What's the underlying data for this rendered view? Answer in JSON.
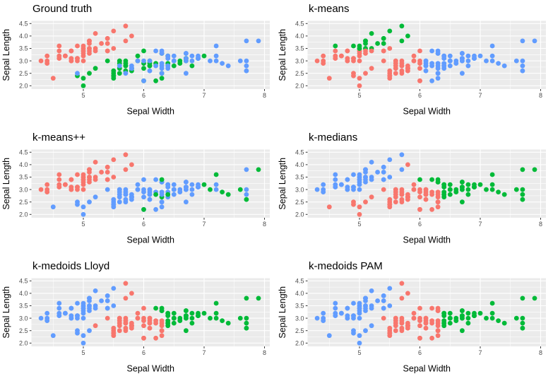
{
  "chart_data": {
    "type": "scatter",
    "xlabel": "Sepal Width",
    "ylabel": "Sepal Length",
    "x_ticks": [
      "5",
      "6",
      "7",
      "8"
    ],
    "x_tick_values": [
      5,
      6,
      7,
      8
    ],
    "y_ticks": [
      "2.0",
      "2.5",
      "3.0",
      "3.5",
      "4.0",
      "4.5"
    ],
    "y_tick_values": [
      2.0,
      2.5,
      3.0,
      3.5,
      4.0,
      4.5
    ],
    "x_minor_ticks": [
      4.5,
      5.5,
      6.5,
      7.5
    ],
    "y_minor_ticks": [
      2.25,
      2.75,
      3.25,
      3.75,
      4.25
    ],
    "x_range": [
      4.12,
      8.08
    ],
    "y_range": [
      1.88,
      4.62
    ],
    "grid": "on",
    "legend": "none",
    "panel_background": "#EBEBEB",
    "gridline_color": "#FFFFFF",
    "tick_color": "#333333",
    "tick_label_color": "#4D4D4D",
    "palette": {
      "r": "#F8766D",
      "g": "#00BA38",
      "b": "#619CFF"
    },
    "x": [
      5.1,
      4.9,
      4.7,
      4.6,
      5.0,
      5.4,
      4.6,
      5.0,
      4.4,
      4.9,
      5.4,
      4.8,
      4.8,
      4.3,
      5.8,
      5.7,
      5.4,
      5.1,
      5.7,
      5.1,
      5.4,
      5.1,
      4.6,
      5.1,
      4.8,
      5.0,
      5.0,
      5.2,
      5.2,
      4.7,
      4.8,
      5.4,
      5.2,
      5.5,
      4.9,
      5.0,
      5.5,
      4.9,
      4.4,
      5.1,
      5.0,
      4.5,
      4.4,
      5.0,
      5.1,
      4.8,
      5.1,
      4.6,
      5.3,
      5.0,
      7.0,
      6.4,
      6.9,
      5.5,
      6.5,
      5.7,
      6.3,
      4.9,
      6.6,
      5.2,
      5.0,
      5.9,
      6.0,
      6.1,
      5.6,
      6.7,
      5.6,
      5.8,
      6.2,
      5.6,
      5.9,
      6.1,
      6.3,
      6.1,
      6.4,
      6.6,
      6.8,
      6.7,
      6.0,
      5.7,
      5.5,
      5.5,
      5.8,
      6.0,
      5.4,
      6.0,
      6.7,
      6.3,
      5.6,
      5.5,
      5.5,
      6.1,
      5.8,
      5.0,
      5.6,
      5.7,
      5.7,
      6.2,
      5.1,
      5.7,
      6.3,
      5.8,
      7.1,
      6.3,
      6.5,
      7.6,
      4.9,
      7.3,
      6.7,
      7.2,
      6.5,
      6.4,
      6.8,
      5.7,
      5.8,
      6.4,
      6.5,
      7.7,
      7.7,
      6.0,
      6.9,
      5.6,
      7.7,
      6.3,
      6.7,
      7.2,
      6.2,
      6.1,
      6.4,
      7.2,
      7.4,
      7.9,
      6.4,
      6.3,
      6.1,
      7.7,
      6.3,
      6.4,
      6.0,
      6.9,
      6.7,
      6.9,
      5.8,
      6.8,
      6.7,
      6.7,
      6.3,
      6.5,
      6.2,
      5.9
    ],
    "y": [
      3.5,
      3.0,
      3.2,
      3.1,
      3.6,
      3.9,
      3.4,
      3.4,
      2.9,
      3.1,
      3.7,
      3.4,
      3.0,
      3.0,
      4.0,
      4.4,
      3.9,
      3.5,
      3.8,
      3.8,
      3.4,
      3.7,
      3.6,
      3.3,
      3.4,
      3.0,
      3.4,
      3.5,
      3.4,
      3.2,
      3.1,
      3.4,
      4.1,
      4.2,
      3.1,
      3.2,
      3.5,
      3.6,
      3.0,
      3.4,
      3.5,
      2.3,
      3.2,
      3.5,
      3.8,
      3.0,
      3.8,
      3.2,
      3.7,
      3.3,
      3.2,
      3.2,
      3.1,
      2.3,
      2.8,
      2.8,
      3.3,
      2.4,
      2.9,
      2.7,
      2.0,
      3.0,
      2.2,
      2.9,
      2.9,
      3.1,
      3.0,
      2.7,
      2.2,
      2.5,
      3.2,
      2.8,
      2.5,
      2.8,
      2.9,
      3.0,
      2.8,
      3.0,
      2.9,
      2.6,
      2.4,
      2.4,
      2.7,
      2.7,
      3.0,
      3.4,
      3.1,
      2.3,
      3.0,
      2.5,
      2.6,
      3.0,
      2.6,
      2.3,
      2.7,
      3.0,
      2.9,
      2.9,
      2.5,
      2.8,
      3.3,
      2.7,
      3.0,
      2.9,
      3.0,
      3.0,
      2.5,
      2.9,
      2.5,
      3.6,
      3.2,
      2.7,
      3.0,
      2.5,
      2.8,
      3.2,
      3.0,
      3.8,
      2.6,
      2.2,
      3.2,
      2.8,
      2.8,
      2.7,
      3.3,
      3.2,
      2.8,
      3.0,
      2.8,
      3.0,
      2.8,
      3.8,
      2.8,
      2.8,
      2.6,
      3.0,
      3.4,
      3.1,
      3.0,
      3.1,
      3.1,
      3.1,
      2.7,
      3.2,
      3.3,
      3.0,
      2.5,
      3.0,
      3.4,
      3.0
    ],
    "panels": [
      {
        "title": "Ground truth",
        "assign": "rrrrrrrrrrrrrrrrrrrrrrrrrrrrrrrrrrrrrrrrrrrrrrrrrrggggggggggggggggggggggggggggggggggggggggggggggggggbbbbbbbbbbbbbbbbbbbbbbbbbbbbbbbbbbbbbbbbbbbbbbbbbb"
      },
      {
        "title": "k-means",
        "assign": "grrrggrrrrgrrrggggggrggrrrrgrrrrggrrrgrrgrrggrgrgrbbbrbrbrbrrrrbrbrrbrrbbbbbbbrrrrrrrrbbrrrbrrrrrbrrbrbbbbrbbbbbbrrbbbbrbrbbbbbbbbbbbbbbbbrbbbrbbbbbbr"
      },
      {
        "title": "k-means++",
        "assign": "rrrrrrrrrrrrrrrrrrrrrrrrrrrrrrrrrrrrrrrrrbrrrrrrrrgbbbbbbbbbbbbbbbbbbbbbbbbbbbbbbbbbbbbbbbbbbbbbbbbbbbgbbgbgbgbbbbbbbbggbbbgbbgbbbgggbbbgbbbbbbbbbbbbbb"
      },
      {
        "title": "k-medians",
        "assign": "bbbbbbbbbbbbbbrbbbbbbbbbbbbbbbbbbbbbbbbbbrbbbbbbbbgggrgrgrgrrrrrrgrrrrrrrrggggrrrrrrrggrrrrrrrrrrrrrgrgrggrggggggrrggggrgrgrggrrgggggrrgggrgggrgggrggr"
      },
      {
        "title": "k-medoids Lloyd",
        "assign": "bbbbbbbbbbbbbbrrbbrbbbbbbbbbbbbbbbbbbbbbbbbbbbbbbbgggrgrgbgrbrrrrgrrrrrrrrggggrrrrrrrrgrrrrrrbrrrrbrgrgrggbggggggrrggggrgrgrggrrgggggrrgggrgggrgggrggr"
      },
      {
        "title": "k-medoids PAM",
        "assign": "bbbbbbbbbbbbbbrrbbrbbbbbbbbbbbbbbbbbbbbbbbbbbbbbbbgggrgrrbgbbrrrrgrrrrrrrrggggrrrrrrrrgrrrrrrbrrrrbrrrgrggbggggggrrggggrgrgrggrrgggggrrgrgrgggrgggrgrr"
      }
    ]
  }
}
